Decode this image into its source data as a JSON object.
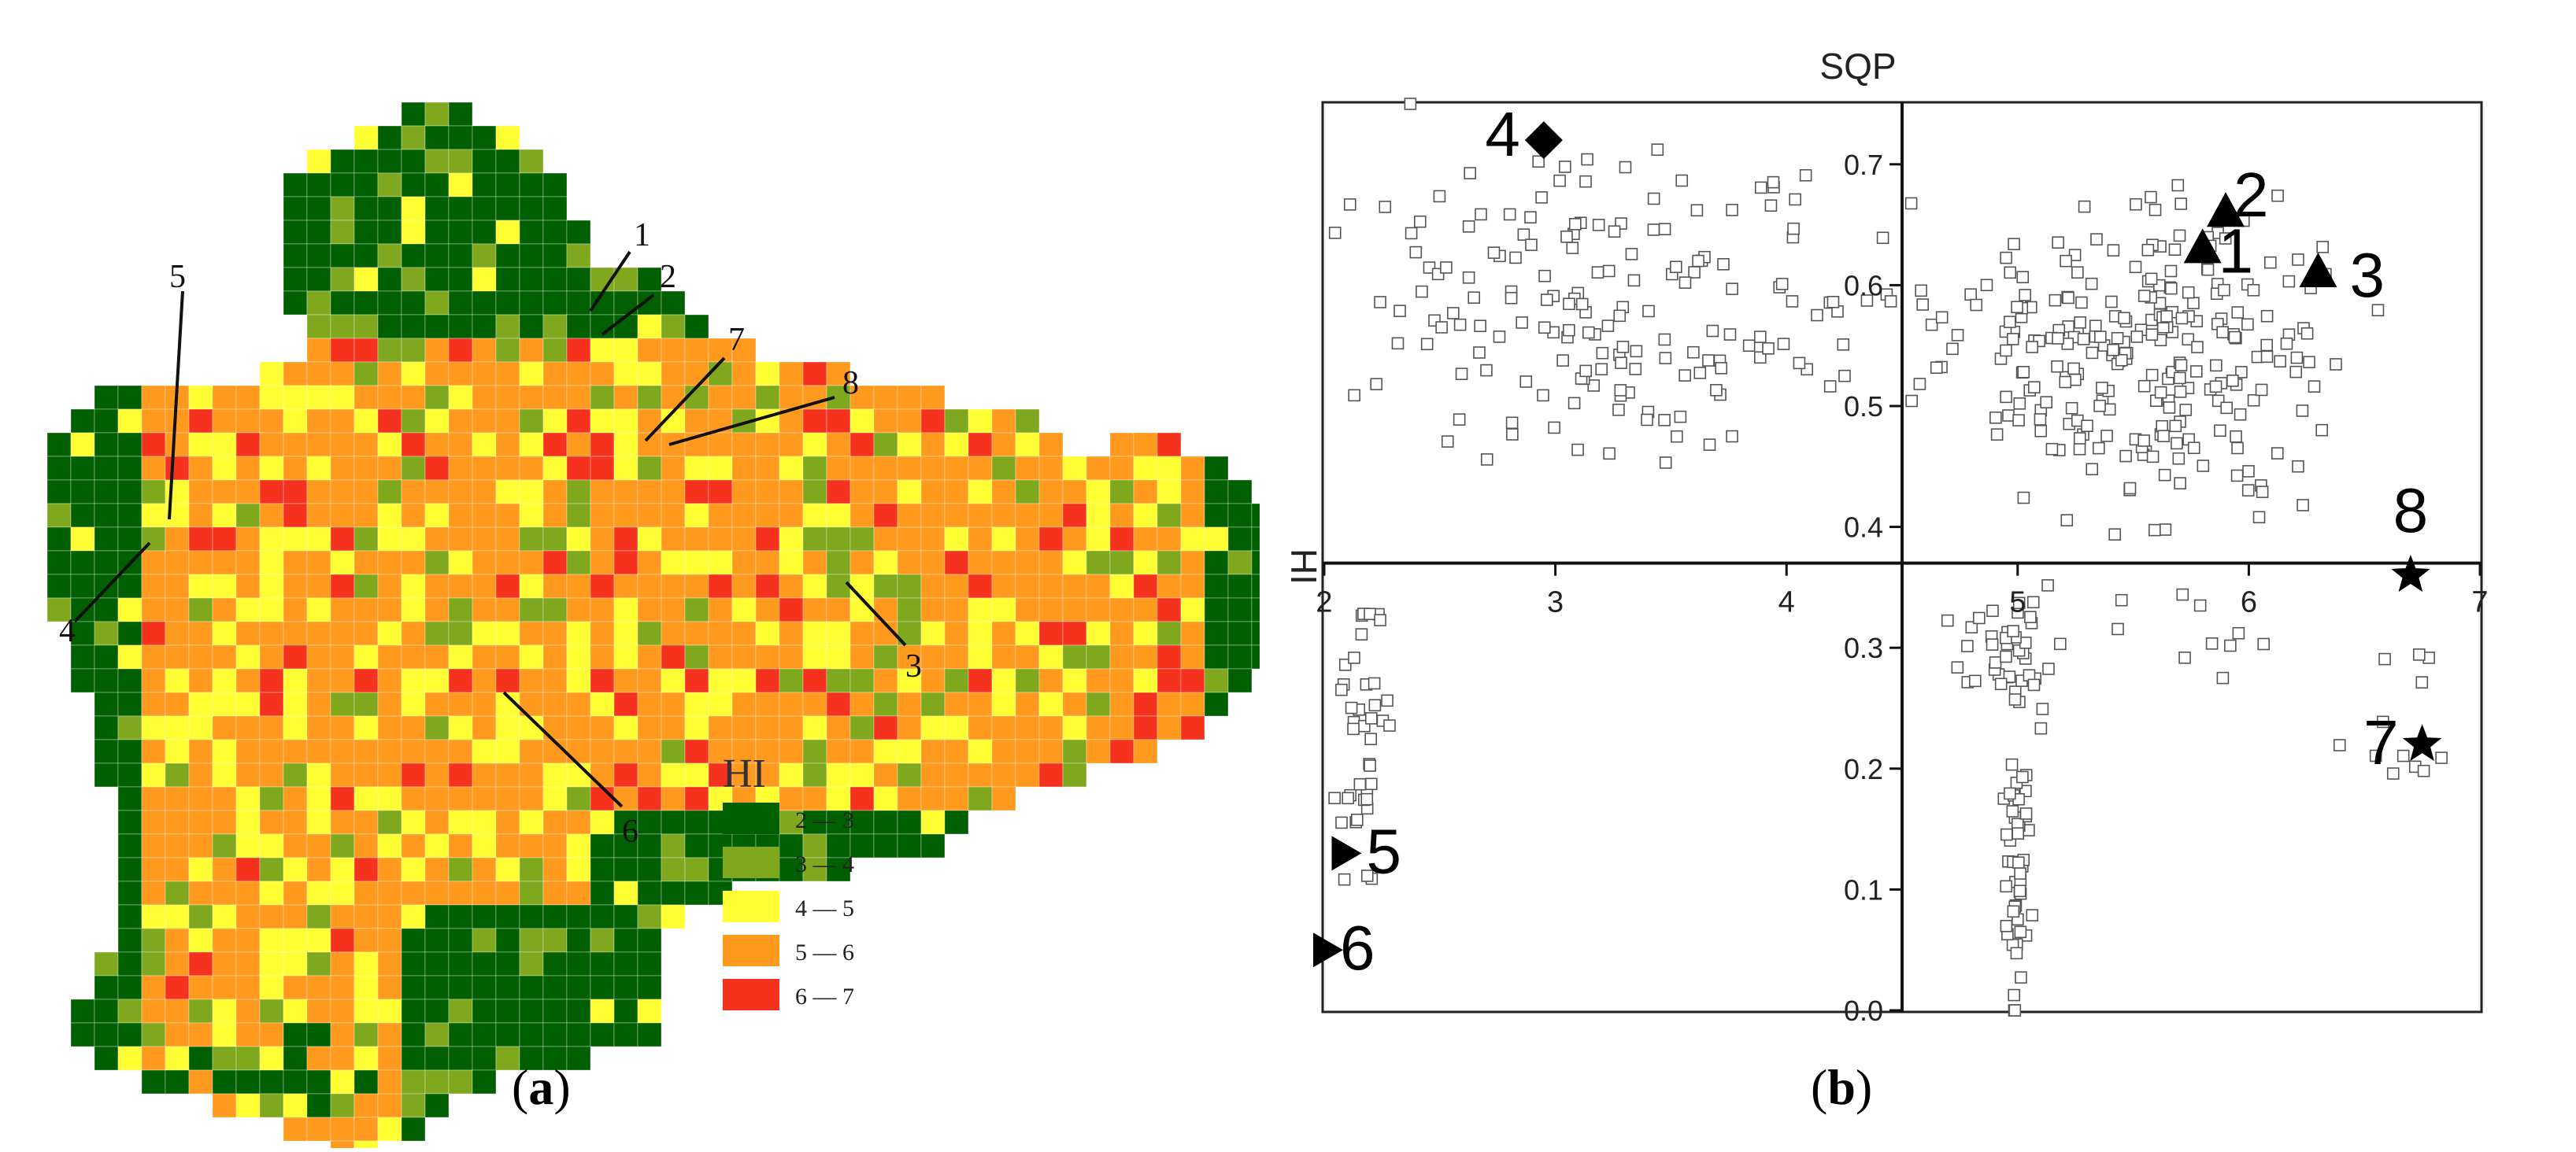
{
  "panel_a": {
    "caption": "(a)",
    "caption_letter": "a",
    "legend_title": "HI",
    "legend": [
      {
        "label": "2 — 3",
        "color": "#005f00"
      },
      {
        "label": "3 — 4",
        "color": "#7fa81e"
      },
      {
        "label": "4 — 5",
        "color": "#ffff33"
      },
      {
        "label": "5 — 6",
        "color": "#ff9a1e"
      },
      {
        "label": "6 — 7",
        "color": "#f5321e"
      }
    ],
    "point_labels": [
      "1",
      "2",
      "3",
      "4",
      "5",
      "6",
      "7",
      "8"
    ]
  },
  "panel_b": {
    "caption": "(b)",
    "caption_letter": "b"
  },
  "chart_data": {
    "type": "scatter",
    "xlabel": "SQP",
    "ylabel": "HI",
    "xlim": [
      2,
      7
    ],
    "ylim": [
      0.0,
      0.75
    ],
    "x_ticks": [
      "2",
      "3",
      "4",
      "5",
      "6",
      "7"
    ],
    "y_ticks": [
      "0.0",
      "0.1",
      "0.2",
      "0.3",
      "0.4",
      "0.5",
      "0.6",
      "0.7"
    ],
    "y_tick_values": [
      0.0,
      0.1,
      0.2,
      0.3,
      0.4,
      0.5,
      0.6,
      0.7
    ],
    "axis_cross": {
      "x": 4.5,
      "y": 0.37
    },
    "grid": false,
    "labeled_points": [
      {
        "label": "1",
        "x": 5.8,
        "y": 0.63,
        "marker": "triangle"
      },
      {
        "label": "2",
        "x": 5.9,
        "y": 0.66,
        "marker": "triangle"
      },
      {
        "label": "3",
        "x": 6.3,
        "y": 0.61,
        "marker": "triangle"
      },
      {
        "label": "4",
        "x": 2.95,
        "y": 0.72,
        "marker": "diamond"
      },
      {
        "label": "5",
        "x": 2.08,
        "y": 0.13,
        "marker": "right-triangle"
      },
      {
        "label": "6",
        "x": 2.0,
        "y": 0.05,
        "marker": "right-triangle"
      },
      {
        "label": "7",
        "x": 6.75,
        "y": 0.22,
        "marker": "star"
      },
      {
        "label": "8",
        "x": 6.7,
        "y": 0.36,
        "marker": "star"
      }
    ],
    "background_points_note": "",
    "scatter_clusters": [
      {
        "x_center": 3.2,
        "x_spread": 1.1,
        "y_center": 0.58,
        "y_spread": 0.12,
        "count": 170
      },
      {
        "x_center": 5.5,
        "x_spread": 0.8,
        "y_center": 0.54,
        "y_spread": 0.12,
        "count": 260
      },
      {
        "x_center": 5.0,
        "x_spread": 0.05,
        "y_center": 0.14,
        "y_spread": 0.12,
        "count": 50
      },
      {
        "x_center": 5.0,
        "x_spread": 0.25,
        "y_center": 0.3,
        "y_spread": 0.06,
        "count": 40
      },
      {
        "x_center": 2.15,
        "x_spread": 0.12,
        "y_center": 0.22,
        "y_spread": 0.13,
        "count": 40
      },
      {
        "x_center": 6.6,
        "x_spread": 0.25,
        "y_center": 0.25,
        "y_spread": 0.08,
        "count": 12
      },
      {
        "x_center": 5.8,
        "x_spread": 0.5,
        "y_center": 0.3,
        "y_spread": 0.04,
        "count": 10
      }
    ]
  }
}
